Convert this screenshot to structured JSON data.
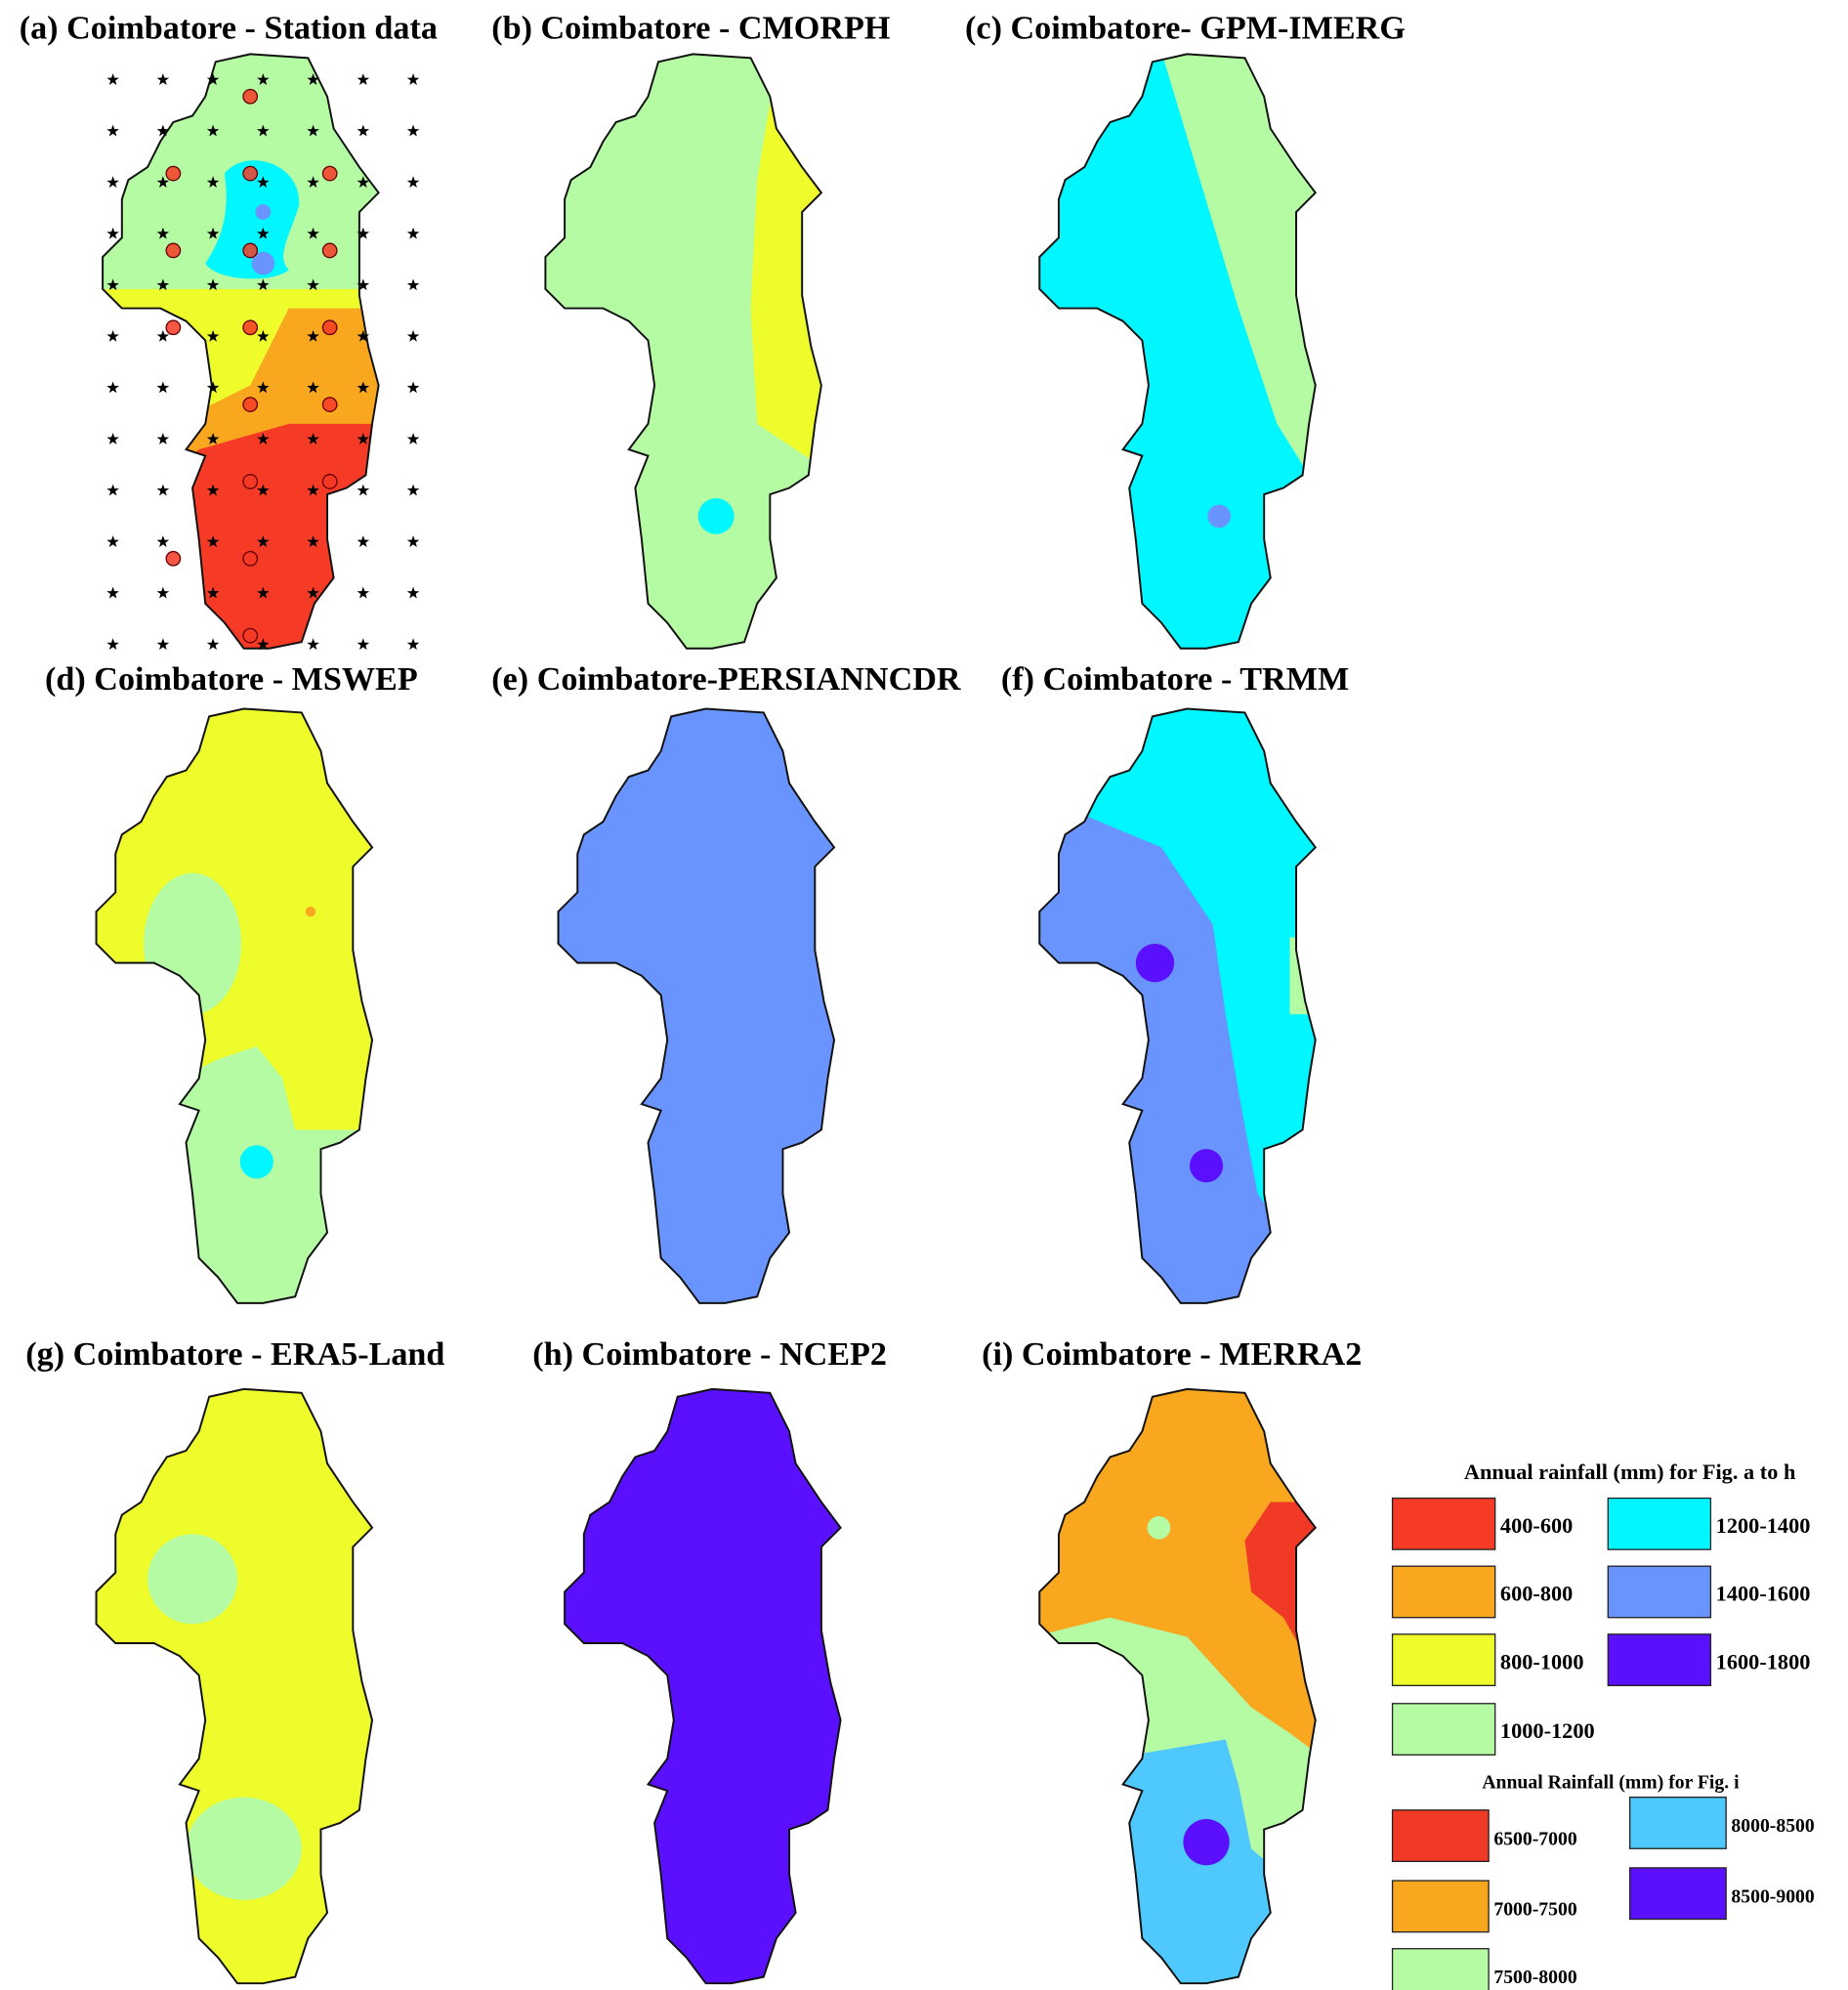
{
  "panels": [
    {
      "label": "(a)",
      "title": "Coimbatore - Station data"
    },
    {
      "label": "(b)",
      "title": "Coimbatore - CMORPH"
    },
    {
      "label": "(c)",
      "title": "Coimbatore- GPM-IMERG"
    },
    {
      "label": "(d)",
      "title": "Coimbatore - MSWEP"
    },
    {
      "label": "(e)",
      "title": "Coimbatore-PERSIANNCDR"
    },
    {
      "label": "(f)",
      "title": "Coimbatore - TRMM"
    },
    {
      "label": "(g)",
      "title": "Coimbatore - ERA5-Land"
    },
    {
      "label": "(h)",
      "title": "Coimbatore - NCEP2"
    },
    {
      "label": "(i)",
      "title": "Coimbatore - MERRA2"
    }
  ],
  "legends": [
    {
      "title": "Annual rainfall (mm) for Fig. a to h",
      "items": [
        {
          "label": "400-600",
          "color": "#f53a25"
        },
        {
          "label": "600-800",
          "color": "#f8a71f"
        },
        {
          "label": "800-1000",
          "color": "#eefc2b"
        },
        {
          "label": "1000-1200",
          "color": "#b4fba4"
        },
        {
          "label": "1200-1400",
          "color": "#00f7ff"
        },
        {
          "label": "1400-1600",
          "color": "#6994fd"
        },
        {
          "label": "1600-1800",
          "color": "#5a10fd"
        }
      ]
    },
    {
      "title": "Annual Rainfall (mm) for Fig. i",
      "items": [
        {
          "label": "6500-7000",
          "color": "#f03a25"
        },
        {
          "label": "7000-7500",
          "color": "#f8a71f"
        },
        {
          "label": "7500-8000",
          "color": "#b4fba4"
        },
        {
          "label": "8000-8500",
          "color": "#4ec8fd"
        },
        {
          "label": "8500-9000",
          "color": "#5a10fd"
        }
      ]
    }
  ]
}
